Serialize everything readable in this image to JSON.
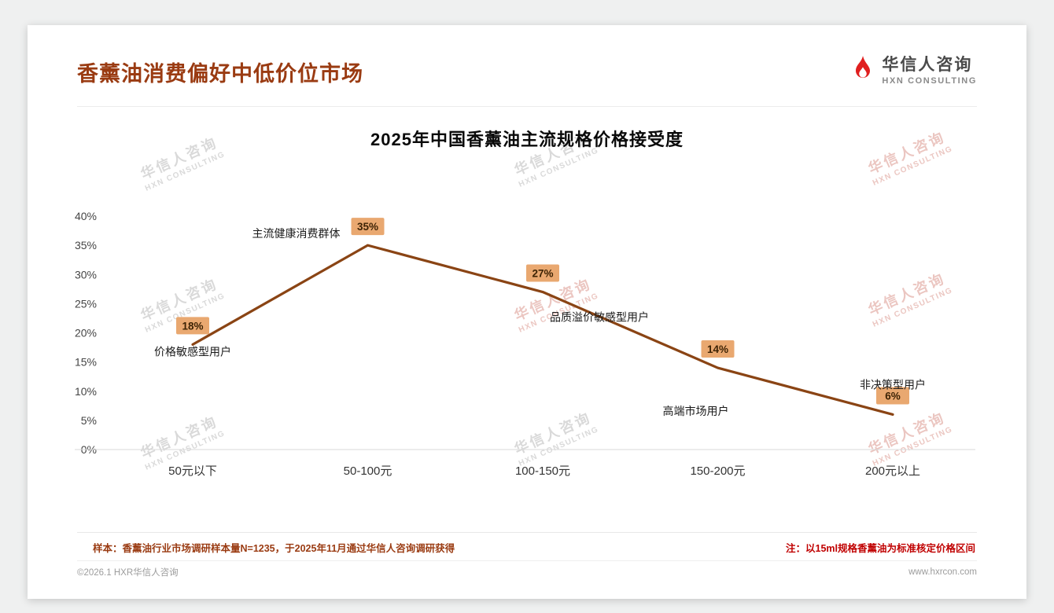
{
  "header": {
    "title": "香薰油消费偏好中低价位市场"
  },
  "logo": {
    "name": "华信人咨询",
    "sub": "HXN CONSULTING"
  },
  "watermark": {
    "line1": "华信人咨询",
    "line2": "HXN CONSULTING"
  },
  "chart_data": {
    "type": "line",
    "title": "2025年中国香薰油主流规格价格接受度",
    "categories": [
      "50元以下",
      "50-100元",
      "100-150元",
      "150-200元",
      "200元以上"
    ],
    "values": [
      18,
      35,
      27,
      14,
      6
    ],
    "value_labels": [
      "18%",
      "35%",
      "27%",
      "14%",
      "6%"
    ],
    "point_annotations": [
      "价格敏感型用户",
      "主流健康消费群体",
      "品质溢价敏感型用户",
      "高端市场用户",
      "非决策型用户"
    ],
    "ylim": [
      0,
      40
    ],
    "ytick_step": 5,
    "ytick_labels": [
      "0%",
      "5%",
      "10%",
      "15%",
      "20%",
      "25%",
      "30%",
      "35%",
      "40%"
    ],
    "grid": false,
    "legend": "none",
    "line_color": "#8a4414",
    "label_bg": "#e9a870"
  },
  "footer": {
    "sample_note": "样本：香薰油行业市场调研样本量N=1235，于2025年11月通过华信人咨询调研获得",
    "price_note": "注：以15ml规格香薰油为标准核定价格区间",
    "copyright": "©2026.1 HXR华信人咨询",
    "website": "www.hxrcon.com"
  }
}
